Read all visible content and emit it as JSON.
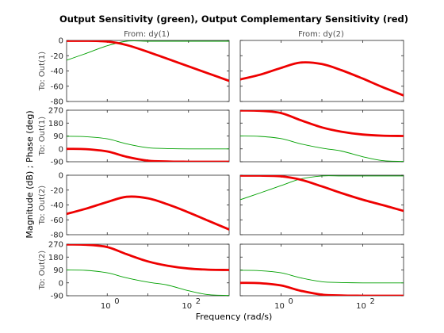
{
  "chart_data": {
    "type": "line",
    "title": "Output Sensitivity (green), Output Complementary Sensitivity (red)",
    "xlabel": "Frequency  (rad/s)",
    "ylabel": "Magnitude (dB) ; Phase (deg)",
    "xscale": "log",
    "xlim": [
      0.1,
      1000
    ],
    "x_tick_labels": [
      "10",
      "0",
      "10",
      "2"
    ],
    "column_labels": [
      "From: dy(1)",
      "From: dy(2)"
    ],
    "row_labels": [
      "To: Out(1)",
      "To: Out(1)",
      "To: Out(2)",
      "To: Out(2)"
    ],
    "grid": false,
    "colors": {
      "sensitivity": "#00a000",
      "complementary": "#ee0000"
    },
    "x": [
      0.1,
      0.3,
      1,
      3,
      10,
      30,
      100,
      300,
      1000
    ],
    "rows": [
      {
        "quantity": "magnitude",
        "ylim": [
          -80,
          0
        ],
        "y_ticks": [
          "0",
          "-20",
          "-40",
          "-60",
          "-80"
        ],
        "y_tick_values": [
          0,
          -20,
          -40,
          -60,
          -80
        ],
        "cells": [
          {
            "sensitivity": [
              -26,
              -17,
              -7,
              -1,
              -1,
              -1,
              -1,
              -1,
              -1
            ],
            "complementary": [
              -0.5,
              -0.5,
              -1.5,
              -6,
              -15,
              -24,
              -34,
              -43,
              -53
            ]
          },
          {
            "sensitivity": [],
            "complementary": [
              -51,
              -45,
              -36,
              -29,
              -31,
              -39,
              -50,
              -61,
              -72
            ]
          }
        ]
      },
      {
        "quantity": "phase",
        "ylim": [
          -90,
          270
        ],
        "y_ticks": [
          "270",
          "180",
          "90",
          "0",
          "-90"
        ],
        "y_tick_values": [
          270,
          180,
          90,
          0,
          -90
        ],
        "cells": [
          {
            "sensitivity": [
              88,
              85,
              70,
              35,
              8,
              2,
              0,
              0,
              0
            ],
            "complementary": [
              0,
              -2,
              -18,
              -55,
              -82,
              -88,
              -90,
              -90,
              -90
            ]
          },
          {
            "sensitivity": [
              90,
              87,
              72,
              35,
              5,
              -15,
              -55,
              -82,
              -88
            ],
            "complementary": [
              268,
              266,
              250,
              200,
              150,
              120,
              100,
              92,
              90
            ]
          }
        ]
      },
      {
        "quantity": "magnitude",
        "ylim": [
          -80,
          0
        ],
        "y_ticks": [
          "0",
          "-20",
          "-40",
          "-60",
          "-80"
        ],
        "y_tick_values": [
          0,
          -20,
          -40,
          -60,
          -80
        ],
        "cells": [
          {
            "sensitivity": [],
            "complementary": [
              -52,
              -45,
              -36,
              -29,
              -31,
              -39,
              -50,
              -61,
              -73
            ]
          },
          {
            "sensitivity": [
              -33,
              -24,
              -14,
              -5,
              -1,
              -1,
              -1,
              -1,
              -1
            ],
            "complementary": [
              -0.5,
              -0.5,
              -1.5,
              -6,
              -15,
              -24,
              -33,
              -40,
              -48
            ]
          }
        ]
      },
      {
        "quantity": "phase",
        "ylim": [
          -90,
          270
        ],
        "y_ticks": [
          "270",
          "180",
          "90",
          "0",
          "-90"
        ],
        "y_tick_values": [
          270,
          180,
          90,
          0,
          -90
        ],
        "cells": [
          {
            "sensitivity": [
              90,
              87,
              70,
              35,
              5,
              -15,
              -55,
              -82,
              -88
            ],
            "complementary": [
              268,
              266,
              250,
              200,
              150,
              120,
              100,
              92,
              90
            ]
          },
          {
            "sensitivity": [
              88,
              85,
              70,
              35,
              8,
              2,
              0,
              0,
              0
            ],
            "complementary": [
              0,
              -2,
              -18,
              -55,
              -82,
              -88,
              -90,
              -90,
              -90
            ]
          }
        ]
      }
    ]
  }
}
